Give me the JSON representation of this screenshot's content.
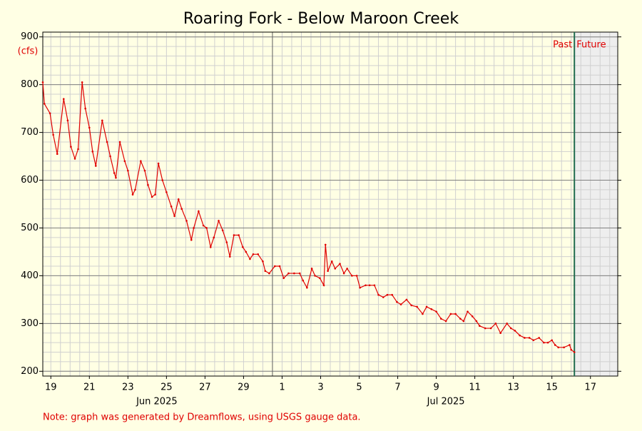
{
  "chart_data": {
    "type": "line",
    "title": "Roaring Fork - Below Maroon Creek",
    "y_unit": "(cfs)",
    "note": "Note: graph was generated by Dreamflows, using USGS gauge data.",
    "color": "#e00000",
    "x": [
      "2025-06-19T02:00",
      "2025-06-19T04:00",
      "2025-06-19T11:00",
      "2025-06-19T15:00",
      "2025-06-19T20:00",
      "2025-06-20T04:00",
      "2025-06-20T09:00",
      "2025-06-20T13:00",
      "2025-06-20T18:00",
      "2025-06-20T22:00",
      "2025-06-21T03:00",
      "2025-06-21T07:00",
      "2025-06-21T12:00",
      "2025-06-21T16:00",
      "2025-06-21T20:00",
      "2025-06-22T04:00",
      "2025-06-22T10:00",
      "2025-06-22T14:00",
      "2025-06-22T19:00",
      "2025-06-22T21:00",
      "2025-06-23T02:00",
      "2025-06-23T08:00",
      "2025-06-23T12:00",
      "2025-06-23T18:00",
      "2025-06-23T21:00",
      "2025-06-24T04:00",
      "2025-06-24T09:00",
      "2025-06-24T13:00",
      "2025-06-24T18:00",
      "2025-06-24T22:00",
      "2025-06-25T02:00",
      "2025-06-25T07:00",
      "2025-06-25T12:00",
      "2025-06-25T18:00",
      "2025-06-25T22:00",
      "2025-06-26T03:00",
      "2025-06-26T07:00",
      "2025-06-26T13:00",
      "2025-06-26T19:00",
      "2025-06-26T22:00",
      "2025-06-27T04:00",
      "2025-06-27T10:00",
      "2025-06-27T14:00",
      "2025-06-27T19:00",
      "2025-06-27T23:00",
      "2025-06-28T05:00",
      "2025-06-28T10:00",
      "2025-06-28T15:00",
      "2025-06-28T19:00",
      "2025-06-29T00:00",
      "2025-06-29T06:00",
      "2025-06-29T11:00",
      "2025-06-29T15:00",
      "2025-06-29T20:00",
      "2025-06-30T00:00",
      "2025-06-30T06:00",
      "2025-06-30T12:00",
      "2025-06-30T15:00",
      "2025-06-30T20:00",
      "2025-07-01T03:00",
      "2025-07-01T09:00",
      "2025-07-01T14:00",
      "2025-07-01T20:00",
      "2025-07-02T03:00",
      "2025-07-02T10:00",
      "2025-07-02T14:00",
      "2025-07-02T19:00",
      "2025-07-03T01:00",
      "2025-07-03T05:00",
      "2025-07-03T11:00",
      "2025-07-03T16:00",
      "2025-07-03T18:00",
      "2025-07-03T21:00",
      "2025-07-04T02:00",
      "2025-07-04T06:00",
      "2025-07-04T12:00",
      "2025-07-04T17:00",
      "2025-07-04T21:00",
      "2025-07-05T03:00",
      "2025-07-05T09:00",
      "2025-07-05T13:00",
      "2025-07-05T20:00",
      "2025-07-06T01:00",
      "2025-07-06T07:00",
      "2025-07-06T12:00",
      "2025-07-06T18:00",
      "2025-07-06T23:00",
      "2025-07-07T05:00",
      "2025-07-07T11:00",
      "2025-07-07T16:00",
      "2025-07-07T23:00",
      "2025-07-08T05:00",
      "2025-07-08T12:00",
      "2025-07-08T19:00",
      "2025-07-09T00:00",
      "2025-07-09T06:00",
      "2025-07-09T12:00",
      "2025-07-09T18:00",
      "2025-07-10T00:00",
      "2025-07-10T06:00",
      "2025-07-10T12:00",
      "2025-07-10T18:00",
      "2025-07-10T22:00",
      "2025-07-11T03:00",
      "2025-07-11T09:00",
      "2025-07-11T14:00",
      "2025-07-11T18:00",
      "2025-07-12T01:00",
      "2025-07-12T08:00",
      "2025-07-12T14:00",
      "2025-07-12T20:00",
      "2025-07-13T04:00",
      "2025-07-13T09:00",
      "2025-07-13T14:00",
      "2025-07-13T20:00",
      "2025-07-14T02:00",
      "2025-07-14T08:00",
      "2025-07-14T13:00",
      "2025-07-14T20:00",
      "2025-07-15T02:00",
      "2025-07-15T07:00",
      "2025-07-15T12:00",
      "2025-07-15T16:00",
      "2025-07-15T20:00",
      "2025-07-16T03:00",
      "2025-07-16T10:00",
      "2025-07-16T12:00",
      "2025-07-16T16:00"
    ],
    "values": [
      805,
      760,
      740,
      695,
      655,
      770,
      725,
      670,
      645,
      665,
      805,
      750,
      710,
      660,
      630,
      725,
      680,
      650,
      615,
      605,
      680,
      640,
      620,
      570,
      580,
      640,
      620,
      590,
      565,
      570,
      635,
      600,
      575,
      545,
      525,
      560,
      540,
      515,
      475,
      500,
      535,
      505,
      500,
      460,
      480,
      515,
      495,
      470,
      440,
      485,
      485,
      460,
      450,
      435,
      445,
      445,
      430,
      410,
      405,
      420,
      420,
      395,
      405,
      405,
      405,
      390,
      375,
      415,
      400,
      395,
      380,
      465,
      410,
      430,
      415,
      425,
      405,
      415,
      400,
      400,
      375,
      380,
      380,
      380,
      360,
      355,
      360,
      360,
      345,
      340,
      350,
      338,
      335,
      320,
      335,
      330,
      325,
      310,
      305,
      320,
      320,
      310,
      305,
      325,
      315,
      305,
      295,
      290,
      290,
      300,
      280,
      300,
      290,
      285,
      275,
      270,
      270,
      265,
      270,
      260,
      260,
      265,
      255,
      250,
      250,
      255,
      245,
      240
    ],
    "xlim": [
      "2025-06-19T02:00",
      "2025-07-18T22:00"
    ],
    "xticks": [
      {
        "value": "2025-06-19T12:00",
        "label": "19"
      },
      {
        "value": "2025-06-21T12:00",
        "label": "21"
      },
      {
        "value": "2025-06-23T12:00",
        "label": "23"
      },
      {
        "value": "2025-06-25T12:00",
        "label": "25"
      },
      {
        "value": "2025-06-27T12:00",
        "label": "27"
      },
      {
        "value": "2025-06-29T12:00",
        "label": "29"
      },
      {
        "value": "2025-07-01T12:00",
        "label": "1"
      },
      {
        "value": "2025-07-03T12:00",
        "label": "3"
      },
      {
        "value": "2025-07-05T12:00",
        "label": "5"
      },
      {
        "value": "2025-07-07T12:00",
        "label": "7"
      },
      {
        "value": "2025-07-09T12:00",
        "label": "9"
      },
      {
        "value": "2025-07-11T12:00",
        "label": "11"
      },
      {
        "value": "2025-07-13T12:00",
        "label": "13"
      },
      {
        "value": "2025-07-15T12:00",
        "label": "15"
      },
      {
        "value": "2025-07-17T12:00",
        "label": "17"
      }
    ],
    "month_labels": [
      {
        "value": "2025-06-25T00:00",
        "label": "Jun 2025"
      },
      {
        "value": "2025-07-10T00:00",
        "label": "Jul 2025"
      }
    ],
    "month_start": "2025-07-01T00:00",
    "ylim": [
      190,
      910
    ],
    "yticks": [
      200,
      300,
      400,
      500,
      600,
      700,
      800,
      900
    ],
    "minor_ygrid": 20,
    "grid": true,
    "now_marker": {
      "x": "2025-07-16T16:00",
      "left_label": "Past",
      "right_label": "Future"
    }
  }
}
